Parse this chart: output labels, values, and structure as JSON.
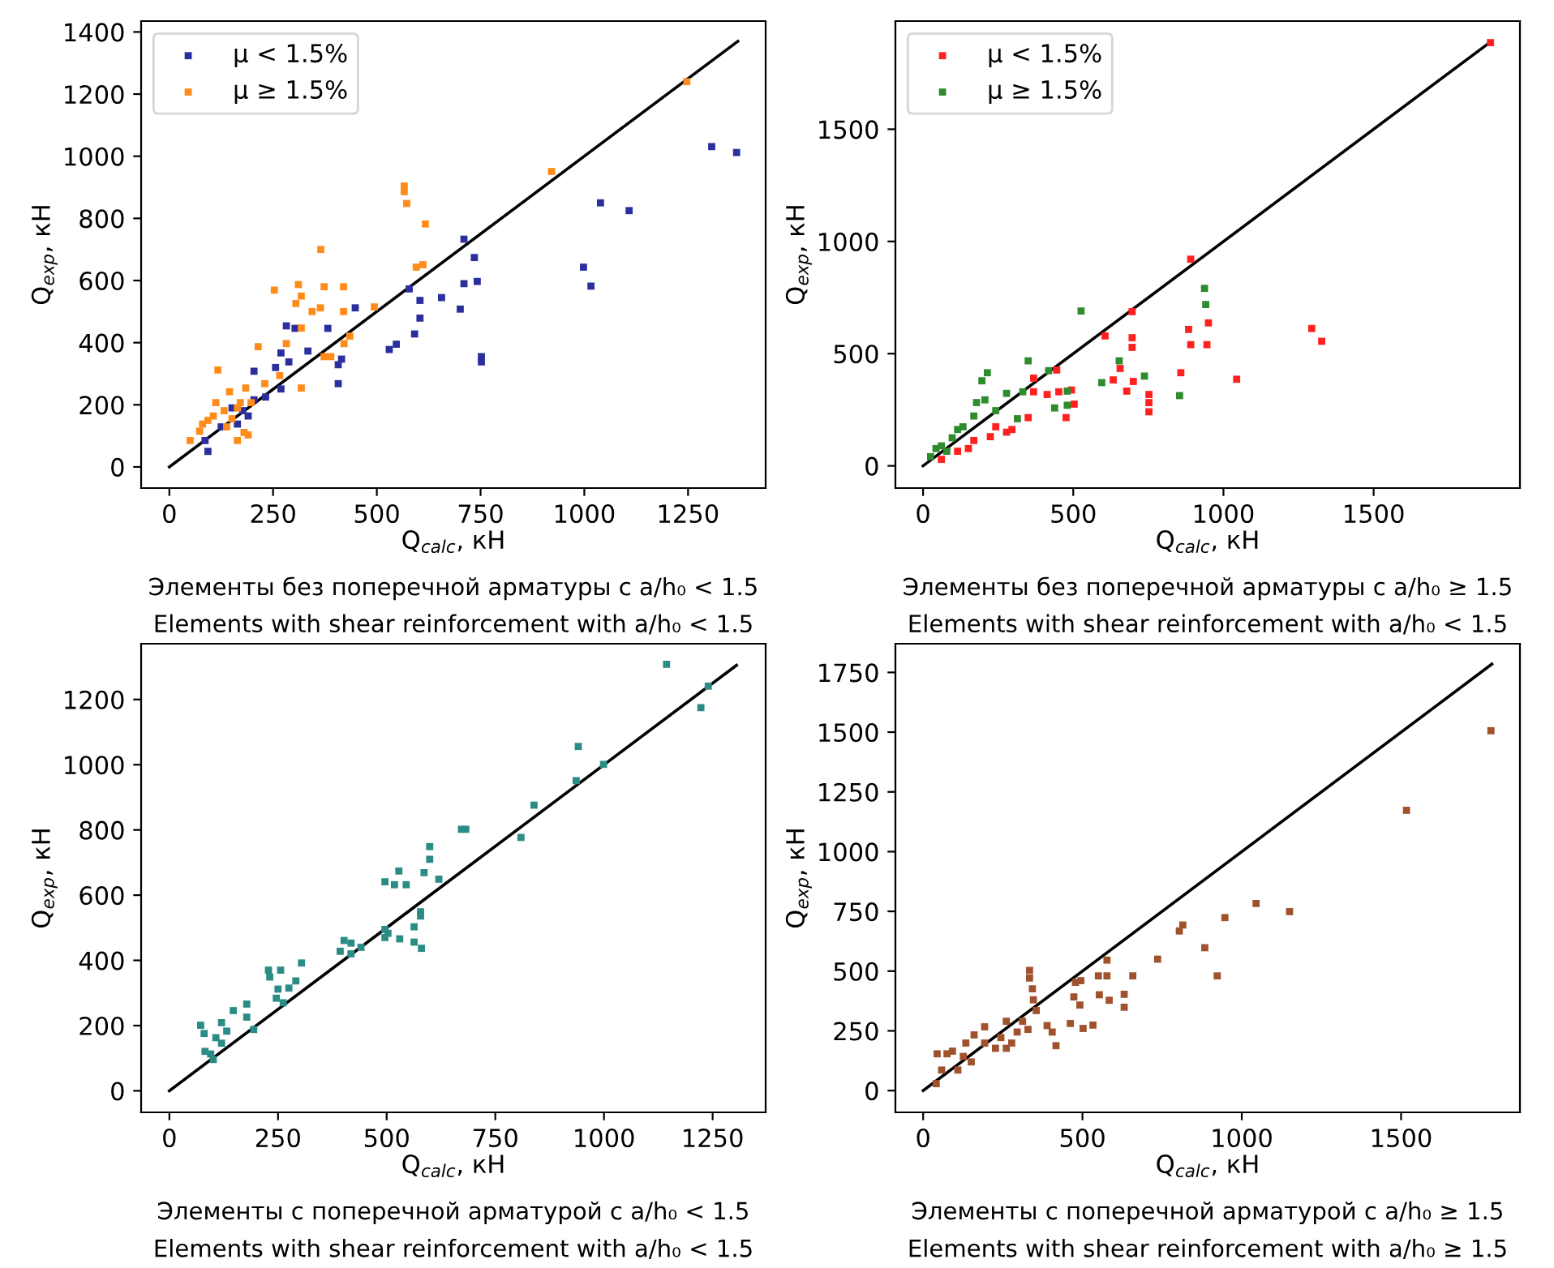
{
  "chart_data": [
    {
      "type": "scatter",
      "xlabel": "Q$_{calc}$, кН",
      "ylabel": "Q$_{exp}$, кН",
      "xlim": [
        -68,
        1437
      ],
      "ylim": [
        -68,
        1435
      ],
      "xticks": [
        0,
        250,
        500,
        750,
        1000,
        1250
      ],
      "yticks": [
        0,
        200,
        400,
        600,
        800,
        1000,
        1200,
        1400
      ],
      "grid": false,
      "legend": "top left",
      "annotations": [
        "Элементы без поперечной арматуры с a/h₀ < 1.5",
        "Elements with shear reinforcement with a/h₀ < 1.5"
      ],
      "series": [
        {
          "name": "μ < 1.5%",
          "color": "#2b2f9e",
          "marker": "square",
          "x": [
            1307,
            1367,
            1039,
            1108,
            998,
            1016,
            710,
            735,
            710,
            742,
            701,
            656,
            604,
            604,
            591,
            578,
            752,
            752,
            547,
            530,
            448,
            382,
            415,
            407,
            407,
            334,
            282,
            303,
            269,
            288,
            256,
            269,
            204,
            232,
            204,
            177,
            151,
            125,
            86,
            93,
            164,
            190
          ],
          "values": [
            1031,
            1012,
            850,
            825,
            643,
            582,
            733,
            674,
            590,
            597,
            508,
            545,
            536,
            479,
            428,
            573,
            355,
            338,
            395,
            378,
            512,
            446,
            347,
            329,
            268,
            373,
            454,
            446,
            367,
            338,
            320,
            251,
            308,
            225,
            216,
            181,
            190,
            129,
            85,
            50,
            138,
            164
          ]
        },
        {
          "name": "μ ≥ 1.5%",
          "color": "#ff8c1a",
          "marker": "square",
          "x": [
            1247,
            921,
            566,
            566,
            572,
            617,
            595,
            611,
            365,
            311,
            373,
            420,
            253,
            318,
            305,
            364,
            344,
            420,
            494,
            318,
            282,
            214,
            373,
            389,
            435,
            421,
            266,
            230,
            318,
            145,
            117,
            184,
            197,
            112,
            132,
            93,
            73,
            50,
            164,
            180,
            190,
            106,
            151,
            171,
            164,
            80,
            138
          ],
          "values": [
            1240,
            951,
            904,
            886,
            848,
            782,
            643,
            651,
            700,
            587,
            580,
            580,
            569,
            550,
            526,
            512,
            500,
            500,
            515,
            447,
            397,
            387,
            355,
            355,
            421,
            397,
            294,
            268,
            254,
            242,
            312,
            254,
            207,
            207,
            181,
            150,
            115,
            85,
            85,
            111,
            103,
            164,
            155,
            207,
            190,
            138,
            129
          ]
        },
        {
          "type": "line",
          "color": "#000000",
          "x": [
            0,
            1370
          ],
          "values": [
            0,
            1370
          ]
        }
      ]
    },
    {
      "type": "scatter",
      "xlabel": "Q$_{calc}$, кН",
      "ylabel": "Q$_{exp}$, кН",
      "xlim": [
        -92,
        1987
      ],
      "ylim": [
        -99,
        1982
      ],
      "xticks": [
        0,
        500,
        1000,
        1500
      ],
      "yticks": [
        0,
        500,
        1000,
        1500
      ],
      "grid": false,
      "legend": "top left",
      "annotations": [
        "Элементы без поперечной арматуры с a/h₀ ≥ 1.5",
        "Elements with shear reinforcement with a/h₀ < 1.5"
      ],
      "series": [
        {
          "name": "μ < 1.5%",
          "color": "#ff2020",
          "marker": "square",
          "x": [
            1889,
            891,
            1294,
            1327,
            1044,
            950,
            945,
            884,
            891,
            858,
            696,
            696,
            696,
            606,
            656,
            700,
            678,
            752,
            752,
            752,
            633,
            445,
            452,
            413,
            503,
            476,
            368,
            350,
            296,
            224,
            151,
            61,
            368,
            494,
            115,
            169,
            242,
            278
          ],
          "values": [
            1886,
            921,
            612,
            555,
            386,
            637,
            540,
            608,
            540,
            415,
            687,
            571,
            528,
            579,
            434,
            376,
            333,
            318,
            282,
            241,
            383,
            427,
            330,
            318,
            275,
            215,
            330,
            215,
            162,
            130,
            77,
            29,
            391,
            338,
            65,
            113,
            174,
            150
          ]
        },
        {
          "name": "μ ≥ 1.5%",
          "color": "#2e8b2e",
          "marker": "square",
          "x": [
            937,
            941,
            526,
            653,
            737,
            854,
            595,
            480,
            480,
            350,
            418,
            438,
            214,
            196,
            178,
            278,
            314,
            242,
            133,
            97,
            61,
            25,
            206,
            332,
            169,
            115,
            43,
            79
          ],
          "values": [
            791,
            719,
            690,
            468,
            400,
            313,
            371,
            333,
            270,
            468,
            424,
            258,
            415,
            379,
            282,
            323,
            210,
            246,
            174,
            125,
            89,
            41,
            294,
            330,
            222,
            162,
            77,
            65
          ]
        },
        {
          "type": "line",
          "color": "#000000",
          "x": [
            0,
            1890
          ],
          "values": [
            0,
            1890
          ]
        }
      ]
    },
    {
      "type": "scatter",
      "xlabel": "Q$_{calc}$, кН",
      "ylabel": "Q$_{exp}$, кН",
      "xlim": [
        -65,
        1372
      ],
      "ylim": [
        -66,
        1371
      ],
      "xticks": [
        0,
        250,
        500,
        750,
        1000,
        1250
      ],
      "yticks": [
        0,
        200,
        400,
        600,
        800,
        1000,
        1200
      ],
      "grid": false,
      "annotations": [
        "Элементы с поперечной арматурой с a/h₀ < 1.5",
        "Elements with shear reinforcement with a/h₀ < 1.5"
      ],
      "series": [
        {
          "color": "#2a8c85",
          "marker": "square",
          "x": [
            1144,
            1223,
            1240,
            941,
            936,
            999,
            839,
            809,
            672,
            682,
            599,
            599,
            586,
            620,
            528,
            496,
            518,
            545,
            578,
            578,
            563,
            563,
            580,
            496,
            503,
            496,
            530,
            402,
            418,
            393,
            441,
            418,
            304,
            291,
            275,
            262,
            256,
            228,
            231,
            250,
            246,
            178,
            178,
            147,
            194,
            120,
            72,
            80,
            132,
            107,
            95,
            82,
            120,
            101
          ],
          "values": [
            1308,
            1175,
            1241,
            1056,
            951,
            1001,
            876,
            777,
            802,
            802,
            749,
            710,
            669,
            649,
            674,
            641,
            632,
            632,
            549,
            536,
            503,
            456,
            437,
            495,
            483,
            470,
            466,
            461,
            453,
            428,
            440,
            420,
            392,
            337,
            315,
            270,
            370,
            370,
            349,
            312,
            284,
            266,
            226,
            246,
            188,
            209,
            201,
            176,
            183,
            163,
            113,
            121,
            146,
            96
          ]
        },
        {
          "type": "line",
          "color": "#000000",
          "x": [
            0,
            1305
          ],
          "values": [
            0,
            1305
          ]
        }
      ]
    },
    {
      "type": "scatter",
      "xlabel": "Q$_{calc}$, кН",
      "ylabel": "Q$_{exp}$, кН",
      "xlim": [
        -87,
        1873
      ],
      "ylim": [
        -91,
        1870
      ],
      "xticks": [
        0,
        500,
        1000,
        1500
      ],
      "yticks": [
        0,
        250,
        500,
        750,
        1000,
        1250,
        1500,
        1750
      ],
      "grid": false,
      "annotations": [
        "Элементы с поперечной арматурой с a/h₀ ≥ 1.5",
        "Elements with shear reinforcement with a/h₀ ≥ 1.5"
      ],
      "series": [
        {
          "color": "#a0522d",
          "marker": "square",
          "x": [
            1782,
            1517,
            1045,
            1150,
            947,
            815,
            804,
            884,
            923,
            736,
            658,
            577,
            577,
            550,
            631,
            631,
            584,
            553,
            495,
            478,
            473,
            492,
            502,
            533,
            462,
            417,
            405,
            389,
            334,
            334,
            343,
            346,
            355,
            312,
            261,
            295,
            244,
            193,
            193,
            160,
            134,
            126,
            92,
            75,
            44,
            41,
            58,
            109,
            151,
            227,
            278,
            329,
            261
          ],
          "values": [
            1506,
            1173,
            783,
            749,
            724,
            693,
            668,
            598,
            480,
            550,
            480,
            546,
            480,
            480,
            403,
            349,
            378,
            401,
            460,
            453,
            392,
            358,
            260,
            274,
            281,
            188,
            245,
            272,
            503,
            471,
            426,
            380,
            335,
            290,
            290,
            245,
            222,
            267,
            199,
            233,
            199,
            143,
            165,
            154,
            154,
            29,
            86,
            86,
            120,
            177,
            199,
            256,
            177
          ]
        },
        {
          "type": "line",
          "color": "#000000",
          "x": [
            0,
            1785
          ],
          "values": [
            0,
            1785
          ]
        }
      ]
    }
  ]
}
